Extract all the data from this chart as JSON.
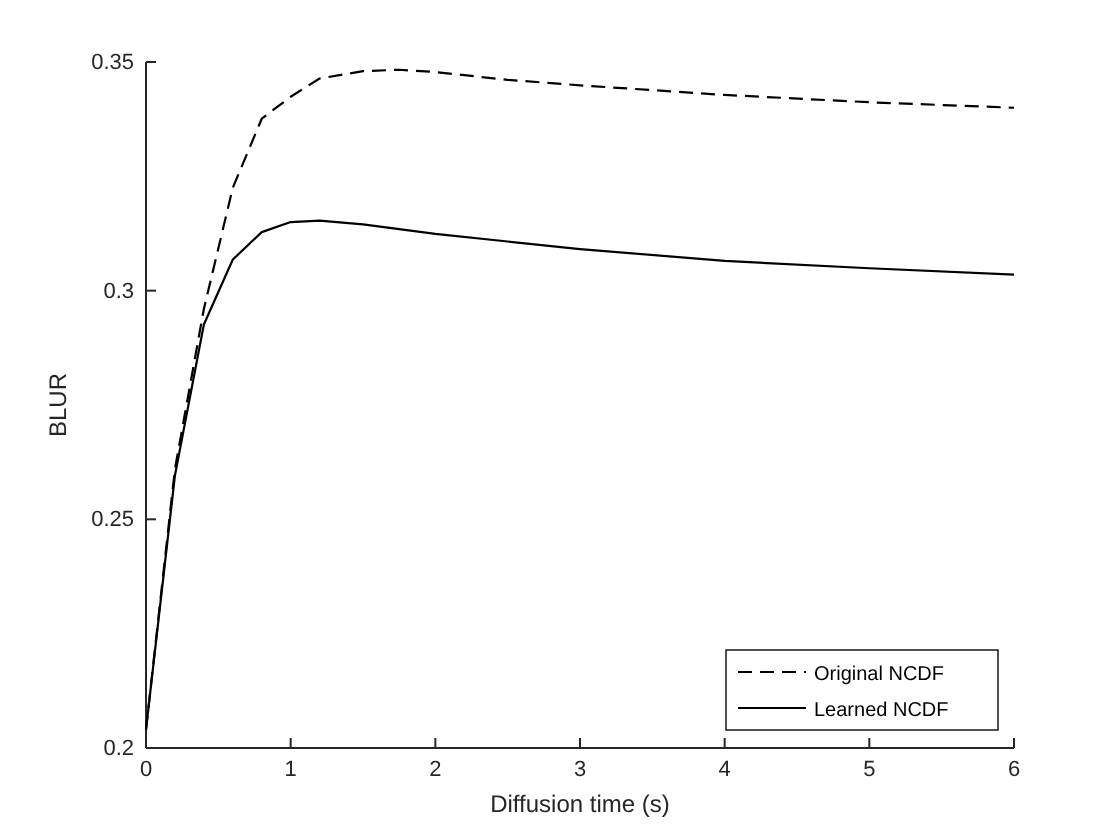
{
  "chart_data": {
    "type": "line",
    "xlabel": "Diffusion time (s)",
    "ylabel": "BLUR",
    "xlim": [
      0,
      6
    ],
    "ylim": [
      0.2,
      0.35
    ],
    "xticks": [
      0,
      1,
      2,
      3,
      4,
      5,
      6
    ],
    "yticks": [
      0.2,
      0.25,
      0.3,
      0.35
    ],
    "legend": "bottom right",
    "grid": false,
    "marker": "none",
    "series": [
      {
        "name": "Original NCDF",
        "color": "#000000",
        "line_style": "dashed",
        "x": [
          0,
          0.2,
          0.4,
          0.6,
          0.8,
          1,
          1.2,
          1.5,
          1.75,
          2,
          2.5,
          3,
          4,
          5,
          6
        ],
        "values": [
          0.204,
          0.261,
          0.296,
          0.3225,
          0.3376,
          0.3424,
          0.3464,
          0.348,
          0.3483,
          0.3478,
          0.3461,
          0.3449,
          0.3428,
          0.3412,
          0.34
        ]
      },
      {
        "name": "Learned NCDF",
        "color": "#000000",
        "line_style": "solid",
        "x": [
          0,
          0.2,
          0.4,
          0.6,
          0.8,
          1,
          1.2,
          1.5,
          2,
          3,
          4,
          5,
          6
        ],
        "values": [
          0.204,
          0.2596,
          0.2926,
          0.3068,
          0.3128,
          0.315,
          0.3153,
          0.3145,
          0.3124,
          0.3091,
          0.3065,
          0.3049,
          0.3035
        ]
      }
    ]
  }
}
